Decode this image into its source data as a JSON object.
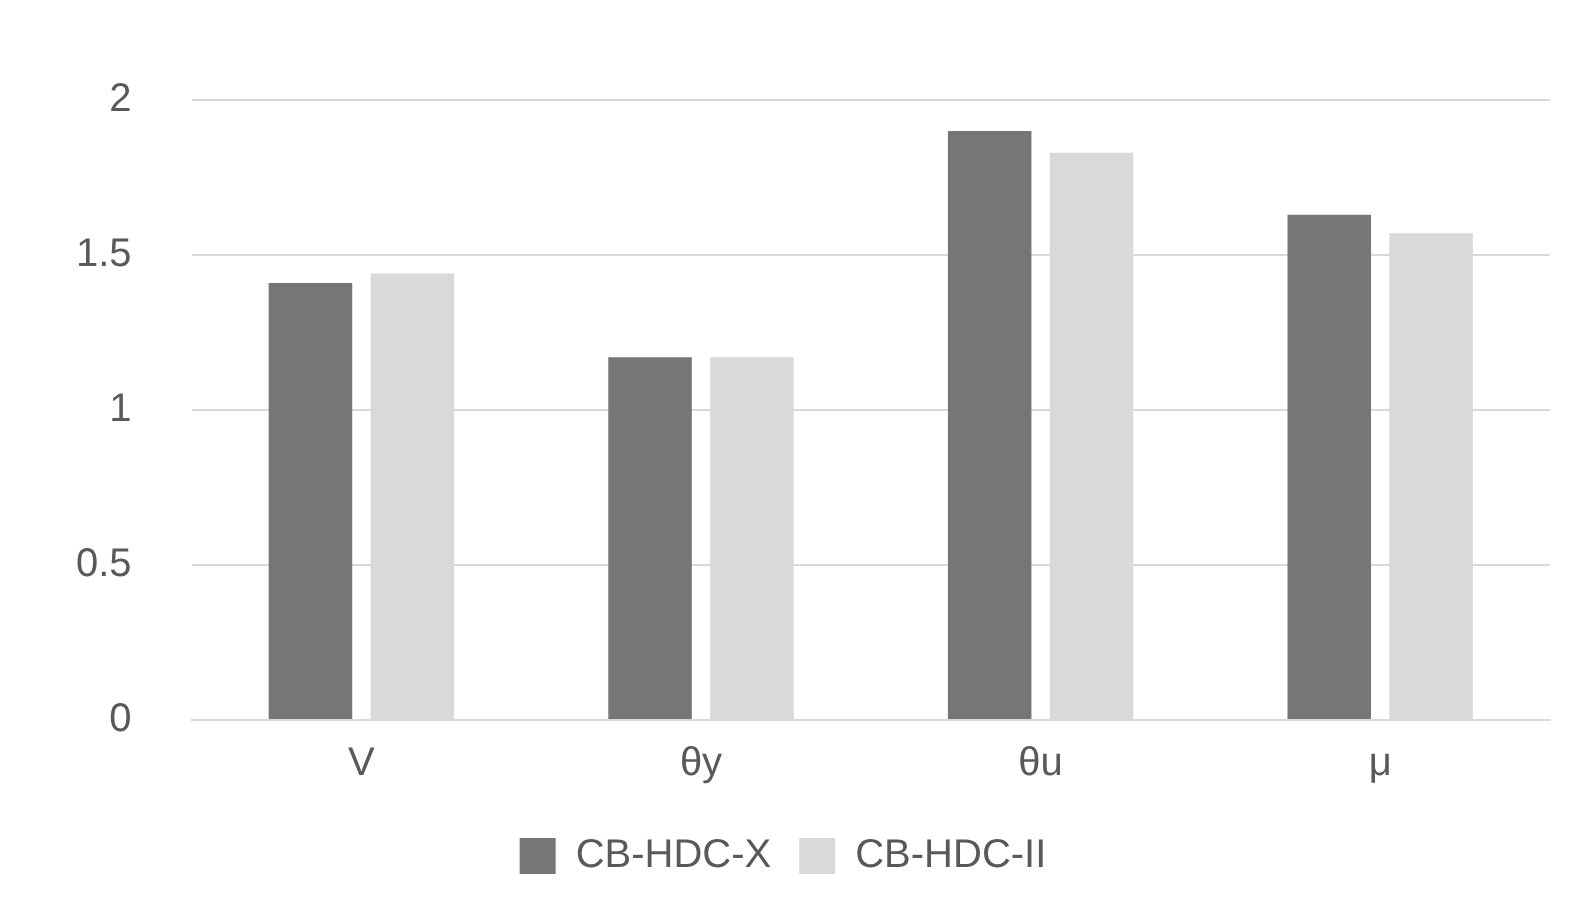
{
  "chart_data": {
    "type": "bar",
    "categories": [
      "V",
      "θy",
      "θu",
      "μ"
    ],
    "series": [
      {
        "name": "CB-HDC-X",
        "color": "#767676",
        "values": [
          1.41,
          1.17,
          1.9,
          1.63
        ]
      },
      {
        "name": "CB-HDC-II",
        "color": "#d9d9d9",
        "values": [
          1.44,
          1.17,
          1.83,
          1.57
        ]
      }
    ],
    "ylim": [
      0,
      2
    ],
    "yticks": [
      0,
      0.5,
      1,
      1.5,
      2
    ],
    "grid": "y",
    "legend": "bottom"
  }
}
